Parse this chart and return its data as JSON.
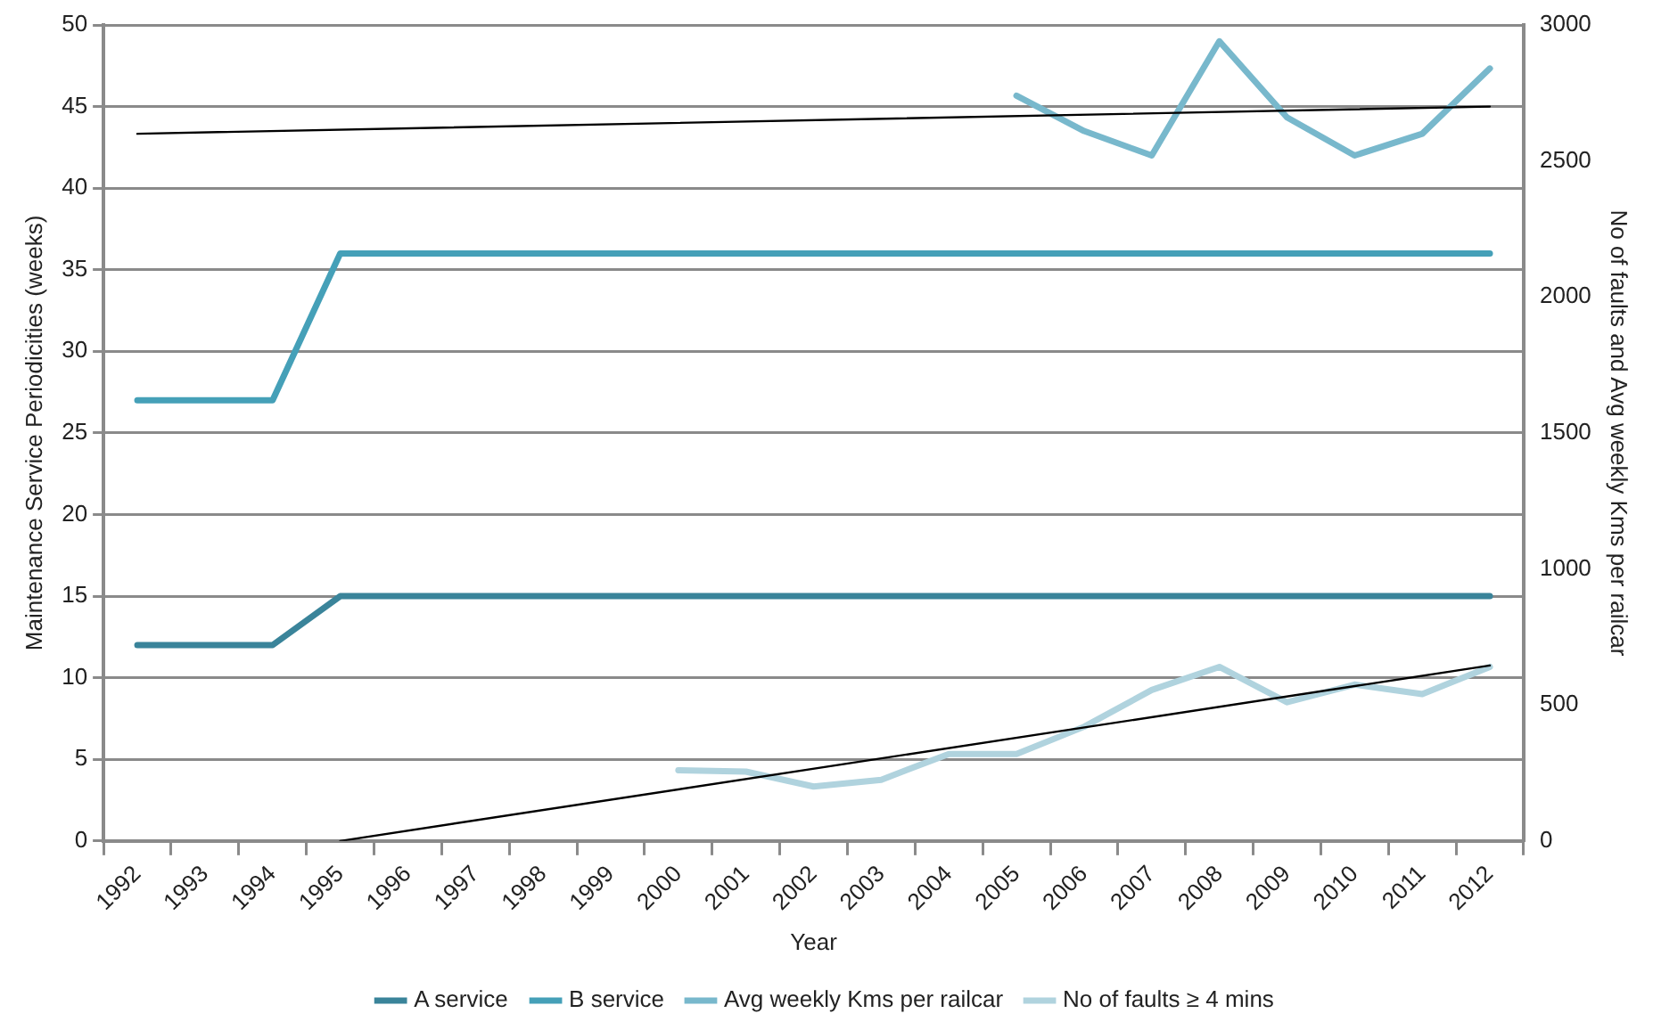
{
  "chart_data": {
    "type": "line",
    "xlabel": "Year",
    "ylabel": "Maintenance Service Periodicities (weeks)",
    "y2label": "No of faults and Avg weekly Kms per railcar",
    "categories": [
      "1992",
      "1993",
      "1994",
      "1995",
      "1996",
      "1997",
      "1998",
      "1999",
      "2000",
      "2001",
      "2002",
      "2003",
      "2004",
      "2005",
      "2006",
      "2007",
      "2008",
      "2009",
      "2010",
      "2011",
      "2012"
    ],
    "series": [
      {
        "name": "A service",
        "color": "#3a849a",
        "values": [
          12,
          12,
          12,
          15,
          15,
          15,
          15,
          15,
          15,
          15,
          15,
          15,
          15,
          15,
          15,
          15,
          15,
          15,
          15,
          15,
          15
        ]
      },
      {
        "name": "B service",
        "color": "#45a0b8",
        "values": [
          27,
          27,
          27,
          36,
          36,
          36,
          36,
          36,
          36,
          36,
          36,
          36,
          36,
          36,
          36,
          36,
          36,
          36,
          36,
          36,
          36
        ]
      },
      {
        "name": "Avg weekly Kms per railcar",
        "color": "#78b8cc",
        "axis": "y2",
        "values": [
          null,
          null,
          null,
          null,
          null,
          null,
          null,
          null,
          null,
          null,
          null,
          null,
          null,
          2740,
          2610,
          2520,
          2940,
          2660,
          2520,
          2600,
          2840
        ]
      },
      {
        "name": "No of faults ≥ 4 mins",
        "color": "#b0d3de",
        "axis": "y2",
        "values": [
          null,
          null,
          null,
          null,
          null,
          null,
          null,
          null,
          260,
          255,
          200,
          225,
          320,
          320,
          420,
          555,
          640,
          510,
          575,
          540,
          640
        ]
      },
      {
        "color": "#000000",
        "axis": "y2",
        "values": [
          2600,
          null,
          null,
          null,
          null,
          null,
          null,
          null,
          null,
          null,
          null,
          null,
          null,
          null,
          null,
          null,
          null,
          null,
          null,
          null,
          2700
        ]
      },
      {
        "color": "#000000",
        "axis": "y2",
        "values": [
          null,
          null,
          null,
          0,
          null,
          null,
          null,
          null,
          null,
          null,
          null,
          null,
          null,
          null,
          null,
          null,
          null,
          null,
          null,
          null,
          645
        ]
      }
    ],
    "ylim": [
      0,
      50
    ],
    "yticks": [
      0,
      5,
      10,
      15,
      20,
      25,
      30,
      35,
      40,
      45,
      50
    ],
    "y2lim": [
      0,
      3000
    ],
    "y2ticks": [
      0,
      500,
      1000,
      1500,
      2000,
      2500,
      3000
    ],
    "grid": "y",
    "legend": "bottom",
    "marker": "none",
    "line_style": "solid"
  }
}
